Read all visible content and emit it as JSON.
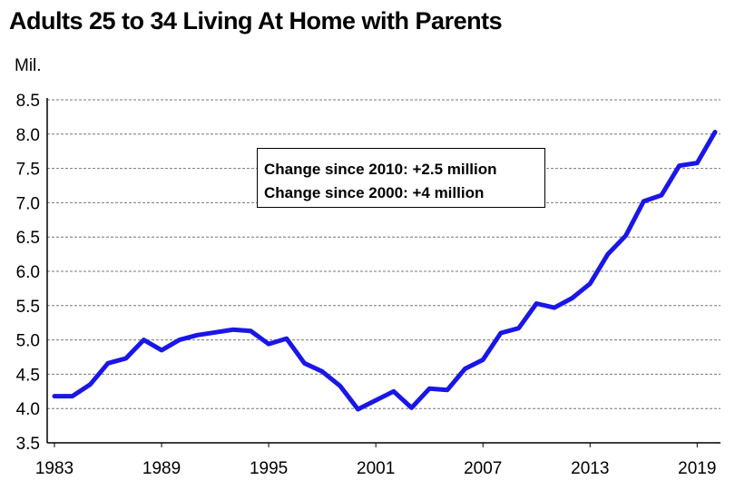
{
  "chart_data": {
    "type": "line",
    "title": "Adults 25 to 34 Living At Home with Parents",
    "ylabel": "Mil.",
    "xlabel": "",
    "ylim": [
      3.5,
      8.5
    ],
    "xlim": [
      1983,
      2020
    ],
    "yticks": [
      "3.5",
      "4.0",
      "4.5",
      "5.0",
      "5.5",
      "6.0",
      "6.5",
      "7.0",
      "7.5",
      "8.0",
      "8.5"
    ],
    "xticks": [
      "1983",
      "1989",
      "1995",
      "2001",
      "2007",
      "2013",
      "2019"
    ],
    "grid": true,
    "line_color": "#1a16e8",
    "annotations": [
      "Change since 2010: +2.5 million",
      "Change since 2000: +4 million"
    ],
    "series": [
      {
        "x": [
          1983,
          1984,
          1985,
          1986,
          1987,
          1988,
          1989,
          1990,
          1991,
          1992,
          1993,
          1994,
          1995,
          1996,
          1997,
          1998,
          1999,
          2000,
          2001,
          2002,
          2003,
          2004,
          2005,
          2006,
          2007,
          2008,
          2009,
          2010,
          2011,
          2012,
          2013,
          2014,
          2015,
          2016,
          2017,
          2018,
          2019,
          2020
        ],
        "values": [
          4.18,
          4.18,
          4.35,
          4.66,
          4.73,
          5.0,
          4.85,
          5.0,
          5.07,
          5.11,
          5.15,
          5.13,
          4.94,
          5.02,
          4.66,
          4.54,
          4.33,
          3.99,
          4.12,
          4.25,
          4.01,
          4.29,
          4.27,
          4.58,
          4.71,
          5.1,
          5.17,
          5.53,
          5.47,
          5.61,
          5.82,
          6.25,
          6.52,
          7.02,
          7.11,
          7.54,
          7.58,
          8.03
        ]
      }
    ]
  }
}
